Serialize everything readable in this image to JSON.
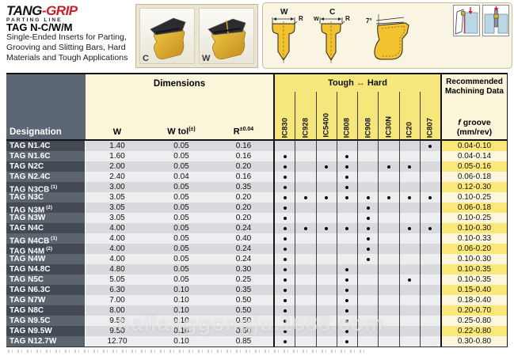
{
  "brand": {
    "name_black": "TANG",
    "logo_dash": "-",
    "name_red": "GRIP",
    "tagline": "PARTING LINE"
  },
  "header": {
    "title": "TAG N-C/W/M",
    "subtitle_lines": [
      "Single-Ended Inserts for Parting,",
      "Grooving and Slitting Bars, Hard",
      "Materials and Tough Applications"
    ]
  },
  "photos": [
    {
      "label": "C"
    },
    {
      "label": "W"
    }
  ],
  "diagrams": {
    "w_view_label": "W",
    "c_view_label": "C",
    "w_dim": "W",
    "r_dim": "R",
    "angle_label": "7°"
  },
  "watermark": "hailanggongju.1688.com",
  "table": {
    "designation_header": "Designation",
    "dimensions_header": "Dimensions",
    "col_w": "W",
    "col_wtol": "W tol",
    "col_wtol_sup": "(±)",
    "col_r": "R",
    "col_r_sup": "±0.04",
    "tough_label": "Tough",
    "hard_label": "Hard",
    "tough_hard_arrow": "↔",
    "grades": [
      "IC830",
      "IC928",
      "IC5400",
      "IC808",
      "IC908",
      "IC30N",
      "IC20",
      "IC807"
    ],
    "mach_header_line1": "Recommended",
    "mach_header_line2": "Machining Data",
    "f_groove_label": "f groove",
    "f_groove_unit": "(mm/rev)",
    "rows": [
      {
        "designation": "TAG N1.4C",
        "sup": "",
        "w": "1.40",
        "wtol": "0.05",
        "r": "0.16",
        "dots": [
          0,
          0,
          0,
          0,
          0,
          0,
          0,
          1
        ],
        "f": "0.04-0.10"
      },
      {
        "designation": "TAG N1.6C",
        "sup": "",
        "w": "1.60",
        "wtol": "0.05",
        "r": "0.16",
        "dots": [
          1,
          0,
          0,
          1,
          0,
          0,
          0,
          0
        ],
        "f": "0.04-0.14"
      },
      {
        "designation": "TAG N2C",
        "sup": "",
        "w": "2.00",
        "wtol": "0.05",
        "r": "0.20",
        "dots": [
          1,
          0,
          1,
          1,
          0,
          1,
          1,
          0
        ],
        "f": "0.05-0.16"
      },
      {
        "designation": "TAG N2.4C",
        "sup": "",
        "w": "2.40",
        "wtol": "0.04",
        "r": "0.16",
        "dots": [
          1,
          0,
          0,
          1,
          0,
          0,
          0,
          0
        ],
        "f": "0.06-0.18"
      },
      {
        "designation": "TAG N3CB",
        "sup": "(1)",
        "w": "3.00",
        "wtol": "0.05",
        "r": "0.35",
        "dots": [
          1,
          0,
          0,
          1,
          0,
          0,
          0,
          0
        ],
        "f": "0.12-0.30"
      },
      {
        "designation": "TAG N3C",
        "sup": "",
        "w": "3.05",
        "wtol": "0.05",
        "r": "0.20",
        "dots": [
          1,
          1,
          1,
          1,
          1,
          1,
          1,
          1
        ],
        "f": "0.10-0.25"
      },
      {
        "designation": "TAG N3M",
        "sup": "(2)",
        "w": "3.05",
        "wtol": "0.05",
        "r": "0.20",
        "dots": [
          1,
          0,
          0,
          0,
          1,
          0,
          0,
          0
        ],
        "f": "0.06-0.18"
      },
      {
        "designation": "TAG N3W",
        "sup": "",
        "w": "3.05",
        "wtol": "0.05",
        "r": "0.20",
        "dots": [
          1,
          0,
          0,
          0,
          1,
          0,
          0,
          0
        ],
        "f": "0.10-0.25"
      },
      {
        "designation": "TAG N4C",
        "sup": "",
        "w": "4.00",
        "wtol": "0.05",
        "r": "0.24",
        "dots": [
          1,
          1,
          1,
          1,
          1,
          0,
          1,
          1
        ],
        "f": "0.10-0.30"
      },
      {
        "designation": "TAG N4CB",
        "sup": "(1)",
        "w": "4.00",
        "wtol": "0.05",
        "r": "0.40",
        "dots": [
          1,
          0,
          0,
          0,
          1,
          0,
          0,
          0
        ],
        "f": "0.10-0.33"
      },
      {
        "designation": "TAG N4M",
        "sup": "(2)",
        "w": "4.00",
        "wtol": "0.05",
        "r": "0.24",
        "dots": [
          1,
          0,
          0,
          0,
          1,
          0,
          0,
          0
        ],
        "f": "0.06-0.20"
      },
      {
        "designation": "TAG N4W",
        "sup": "",
        "w": "4.00",
        "wtol": "0.05",
        "r": "0.24",
        "dots": [
          1,
          0,
          0,
          0,
          1,
          0,
          0,
          0
        ],
        "f": "0.10-0.30"
      },
      {
        "designation": "TAG N4.8C",
        "sup": "",
        "w": "4.80",
        "wtol": "0.05",
        "r": "0.30",
        "dots": [
          1,
          0,
          0,
          1,
          0,
          0,
          0,
          0
        ],
        "f": "0.10-0.35"
      },
      {
        "designation": "TAG N5C",
        "sup": "",
        "w": "5.05",
        "wtol": "0.05",
        "r": "0.25",
        "dots": [
          1,
          0,
          0,
          1,
          0,
          0,
          1,
          0
        ],
        "f": "0.10-0.35"
      },
      {
        "designation": "TAG N6.3C",
        "sup": "",
        "w": "6.30",
        "wtol": "0.10",
        "r": "0.35",
        "dots": [
          1,
          0,
          0,
          1,
          0,
          0,
          0,
          0
        ],
        "f": "0.15-0.40"
      },
      {
        "designation": "TAG N7W",
        "sup": "",
        "w": "7.00",
        "wtol": "0.10",
        "r": "0.50",
        "dots": [
          1,
          0,
          0,
          1,
          0,
          0,
          0,
          0
        ],
        "f": "0.18-0.40"
      },
      {
        "designation": "TAG N8C",
        "sup": "",
        "w": "8.00",
        "wtol": "0.10",
        "r": "0.50",
        "dots": [
          1,
          0,
          0,
          1,
          0,
          0,
          0,
          0
        ],
        "f": "0.20-0.70"
      },
      {
        "designation": "TAG N9.5C",
        "sup": "",
        "w": "9.50",
        "wtol": "0.10",
        "r": "0.50",
        "dots": [
          1,
          0,
          0,
          1,
          0,
          0,
          0,
          0
        ],
        "f": "0.25-0.80"
      },
      {
        "designation": "TAG N9.5W",
        "sup": "",
        "w": "9.50",
        "wtol": "0.10",
        "r": "0.50",
        "dots": [
          1,
          0,
          0,
          1,
          0,
          0,
          0,
          0
        ],
        "f": "0.22-0.80"
      },
      {
        "designation": "TAG N12.7W",
        "sup": "",
        "w": "12.70",
        "wtol": "0.10",
        "r": "0.85",
        "dots": [
          1,
          0,
          0,
          1,
          0,
          0,
          0,
          0
        ],
        "f": "0.30-0.80"
      }
    ]
  },
  "colors": {
    "accent_red": "#c42127",
    "header_slate": "#5d6673",
    "row_dark": "#434a53",
    "row_light": "#5b646f",
    "stripe_dark": "#d8dadd",
    "stripe_light": "#eceef0",
    "yellow_bright": "#f5e77b",
    "cream": "#fbf6da",
    "f_cell_bright": "#fbe87b",
    "f_cell_pale": "#fdf8dd",
    "insert_gold": "#e0a92b",
    "workpiece_blue": "#b9d7e7"
  }
}
